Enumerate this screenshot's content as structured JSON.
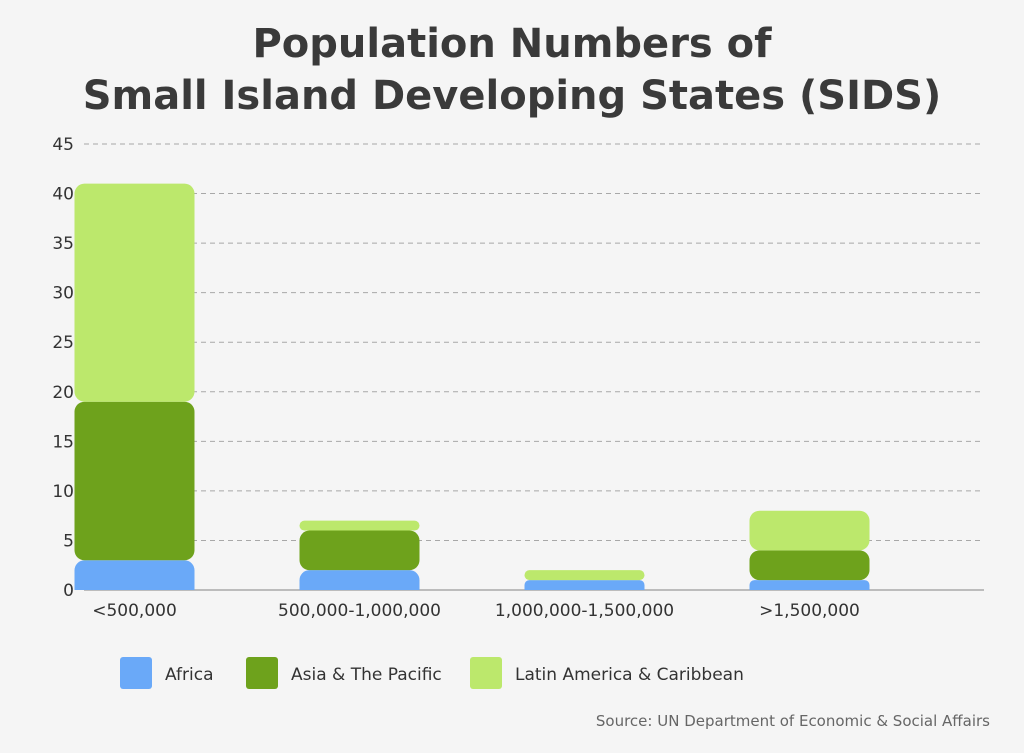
{
  "chart_data": {
    "type": "bar",
    "stacked": true,
    "title": "Population Numbers of Small Island Developing States (SIDS)",
    "title_lines": [
      "Population Numbers of",
      "Small Island Developing States (SIDS)"
    ],
    "categories": [
      "<500,000",
      "500,000-1,000,000",
      "1,000,000-1,500,000",
      ">1,500,000"
    ],
    "series": [
      {
        "name": "Africa",
        "color": "#6aa9f8",
        "values": [
          3,
          2,
          1,
          1
        ]
      },
      {
        "name": "Asia & The Pacific",
        "color": "#6ea21c",
        "values": [
          16,
          4,
          0,
          3
        ]
      },
      {
        "name": "Latin America & Caribbean",
        "color": "#bce86c",
        "values": [
          22,
          1,
          1,
          4
        ]
      }
    ],
    "ylim": [
      0,
      45
    ],
    "yticks": [
      0,
      5,
      10,
      15,
      20,
      25,
      30,
      35,
      40,
      45
    ],
    "grid": true,
    "legend_position": "bottom-left",
    "source": "Source: UN Department of Economic & Social Affairs"
  }
}
